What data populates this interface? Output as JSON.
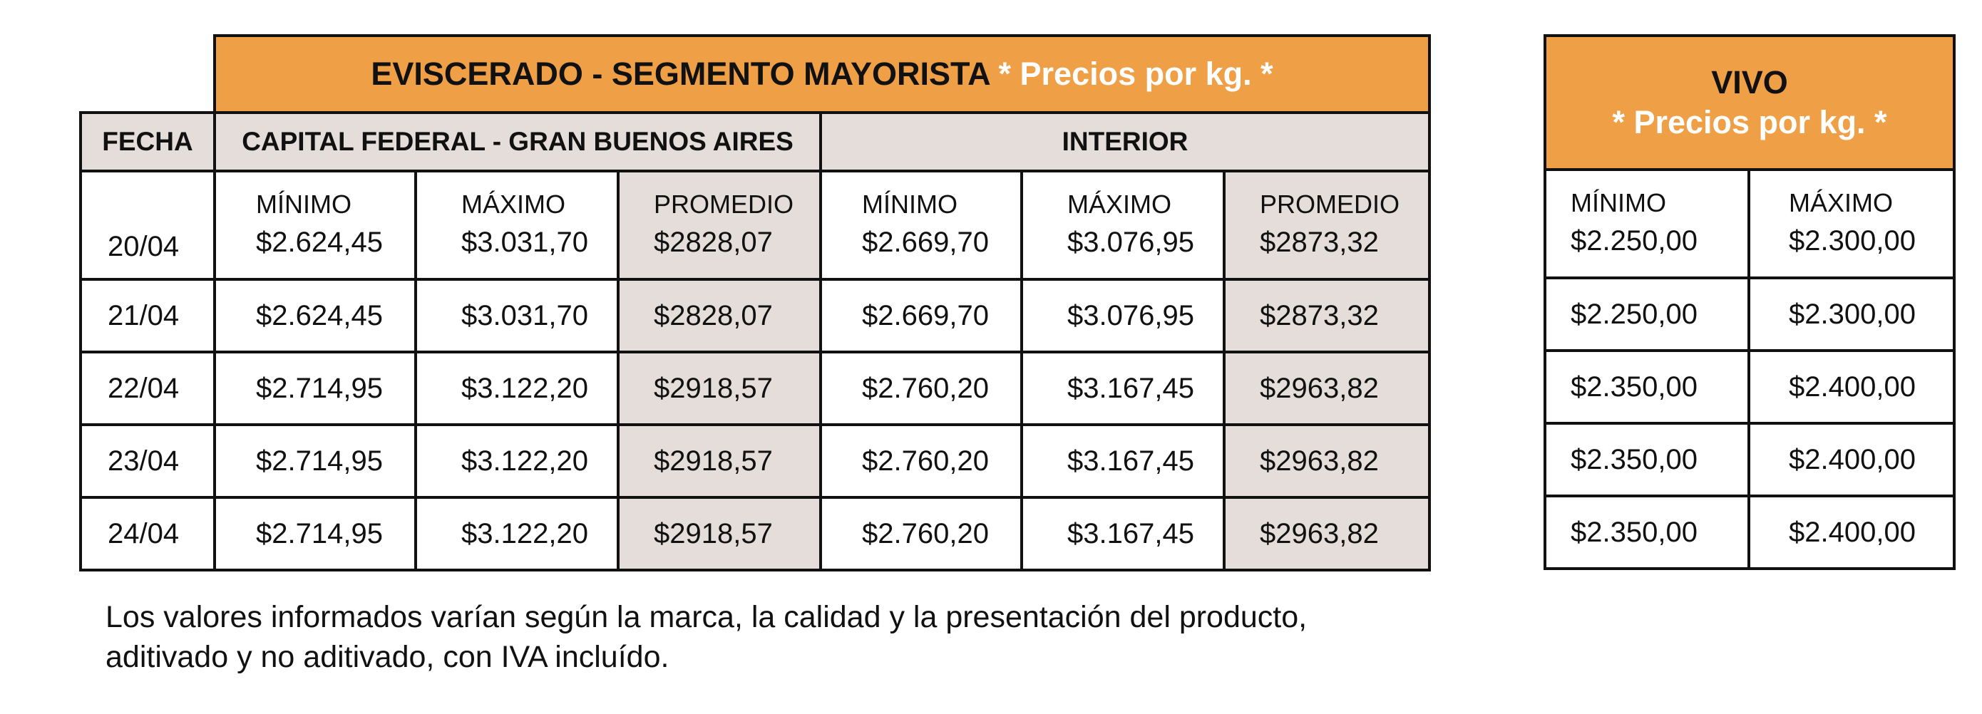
{
  "eviscerado": {
    "title": "EVISCERADO - SEGMENTO MAYORISTA",
    "title_highlight": "* Precios por kg. *",
    "fecha_label": "FECHA",
    "capital_label": "CAPITAL FEDERAL - GRAN BUENOS AIRES",
    "interior_label": "INTERIOR",
    "col_labels": [
      "MÍNIMO",
      "MÁXIMO",
      "PROMEDIO",
      "MÍNIMO",
      "MÁXIMO",
      "PROMEDIO"
    ],
    "rows": [
      {
        "fecha": "20/04",
        "values": [
          "$2.624,45",
          "$3.031,70",
          "$2828,07",
          "$2.669,70",
          "$3.076,95",
          "$2873,32"
        ]
      },
      {
        "fecha": "21/04",
        "values": [
          "$2.624,45",
          "$3.031,70",
          "$2828,07",
          "$2.669,70",
          "$3.076,95",
          "$2873,32"
        ]
      },
      {
        "fecha": "22/04",
        "values": [
          "$2.714,95",
          "$3.122,20",
          "$2918,57",
          "$2.760,20",
          "$3.167,45",
          "$2963,82"
        ]
      },
      {
        "fecha": "23/04",
        "values": [
          "$2.714,95",
          "$3.122,20",
          "$2918,57",
          "$2.760,20",
          "$3.167,45",
          "$2963,82"
        ]
      },
      {
        "fecha": "24/04",
        "values": [
          "$2.714,95",
          "$3.122,20",
          "$2918,57",
          "$2.760,20",
          "$3.167,45",
          "$2963,82"
        ]
      }
    ]
  },
  "vivo": {
    "title": "VIVO",
    "title_highlight": "* Precios por kg. *",
    "col_labels": [
      "MÍNIMO",
      "MÁXIMO"
    ],
    "rows": [
      [
        "$2.250,00",
        "$2.300,00"
      ],
      [
        "$2.250,00",
        "$2.300,00"
      ],
      [
        "$2.350,00",
        "$2.400,00"
      ],
      [
        "$2.350,00",
        "$2.400,00"
      ],
      [
        "$2.350,00",
        "$2.400,00"
      ]
    ]
  },
  "footnote": {
    "line1": "Los valores informados varían según la marca, la calidad y la presentación del producto,",
    "line2": "aditivado y no aditivado, con IVA incluído."
  },
  "colors": {
    "header_orange": "#ef9f46",
    "header_grey": "#e4ddd9",
    "highlight_text": "#ffffff"
  }
}
